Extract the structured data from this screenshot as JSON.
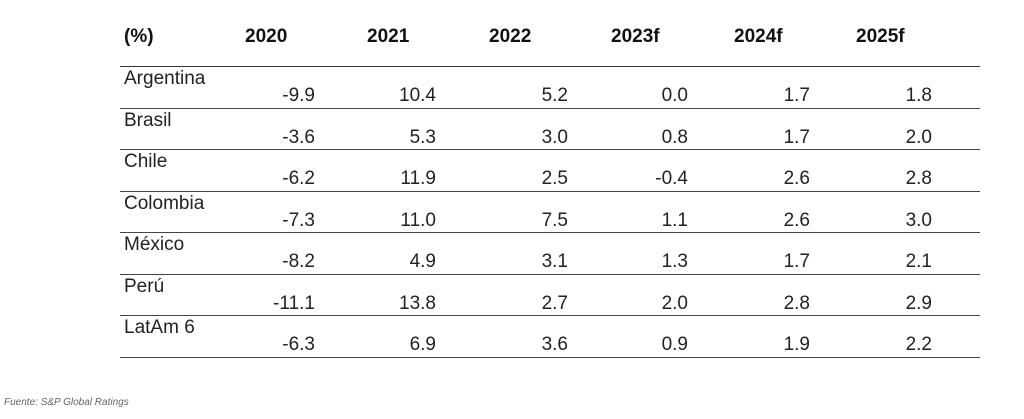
{
  "table": {
    "headers": [
      "(%)",
      "2020",
      "2021",
      "2022",
      "2023f",
      "2024f",
      "2025f"
    ],
    "rows": [
      {
        "country": "Argentina",
        "values": [
          "-9.9",
          "10.4",
          "5.2",
          "0.0",
          "1.7",
          "1.8"
        ]
      },
      {
        "country": "Brasil",
        "values": [
          "-3.6",
          "5.3",
          "3.0",
          "0.8",
          "1.7",
          "2.0"
        ]
      },
      {
        "country": "Chile",
        "values": [
          "-6.2",
          "11.9",
          "2.5",
          "-0.4",
          "2.6",
          "2.8"
        ]
      },
      {
        "country": "Colombia",
        "values": [
          "-7.3",
          "11.0",
          "7.5",
          "1.1",
          "2.6",
          "3.0"
        ]
      },
      {
        "country": "México",
        "values": [
          "-8.2",
          "4.9",
          "3.1",
          "1.3",
          "1.7",
          "2.1"
        ]
      },
      {
        "country": "Perú",
        "values": [
          "-11.1",
          "13.8",
          "2.7",
          "2.0",
          "2.8",
          "2.9"
        ]
      },
      {
        "country": "LatAm 6",
        "values": [
          "-6.3",
          "6.9",
          "3.6",
          "0.9",
          "1.9",
          "2.2"
        ]
      }
    ]
  },
  "source": "Fuente: S&P Global Ratings"
}
